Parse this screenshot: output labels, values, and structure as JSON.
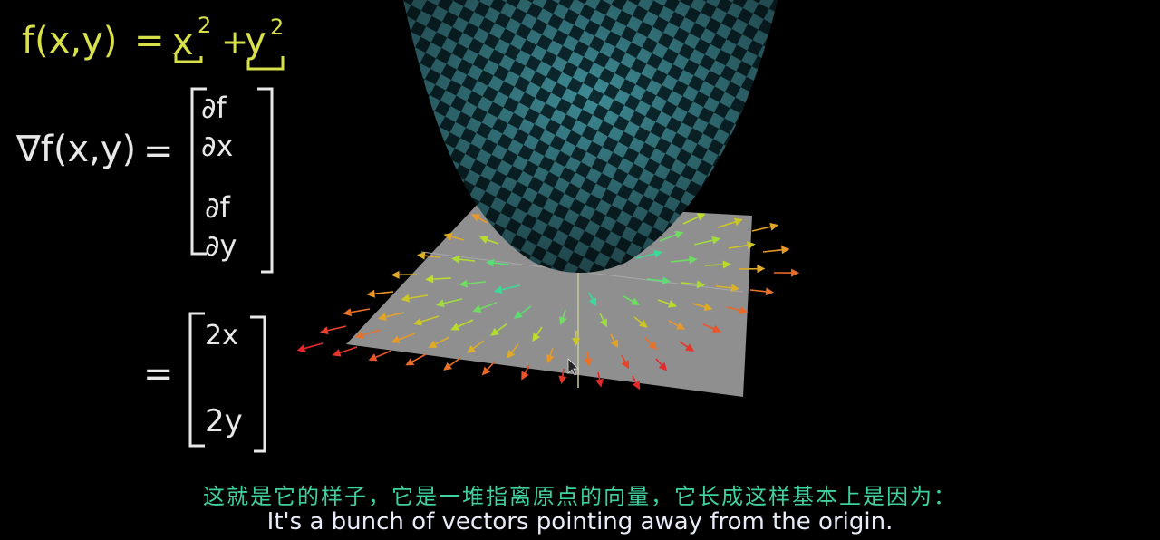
{
  "equations": {
    "f_def": {
      "lhs": "f(x,y)",
      "equals": "=",
      "term1_base": "x",
      "term1_exp": "2",
      "plus": "+",
      "term2_base": "y",
      "term2_exp": "2"
    },
    "gradient": {
      "lhs": "∇f(x,y)",
      "equals": "=",
      "entry1_num": "∂f",
      "entry1_den": "∂x",
      "entry2_num": "∂f",
      "entry2_den": "∂y"
    },
    "result": {
      "equals": "=",
      "entry1": "2x",
      "entry2": "2y"
    }
  },
  "colors": {
    "background": "#000000",
    "yellow_ink": "#d8e04a",
    "white_ink": "#e8e8e8",
    "surface_light": "#3e8a94",
    "surface_dark": "#0c2a30",
    "plane": "#8f8f8f",
    "subtitle_cn": "#3fd0a0",
    "subtitle_en": "#e8ecf8"
  },
  "subtitles": {
    "chinese": "这就是它的样子，它是一堆指离原点的向量，它长成这样基本上是因为：",
    "english": "It's a bunch of vectors pointing away from the origin."
  }
}
